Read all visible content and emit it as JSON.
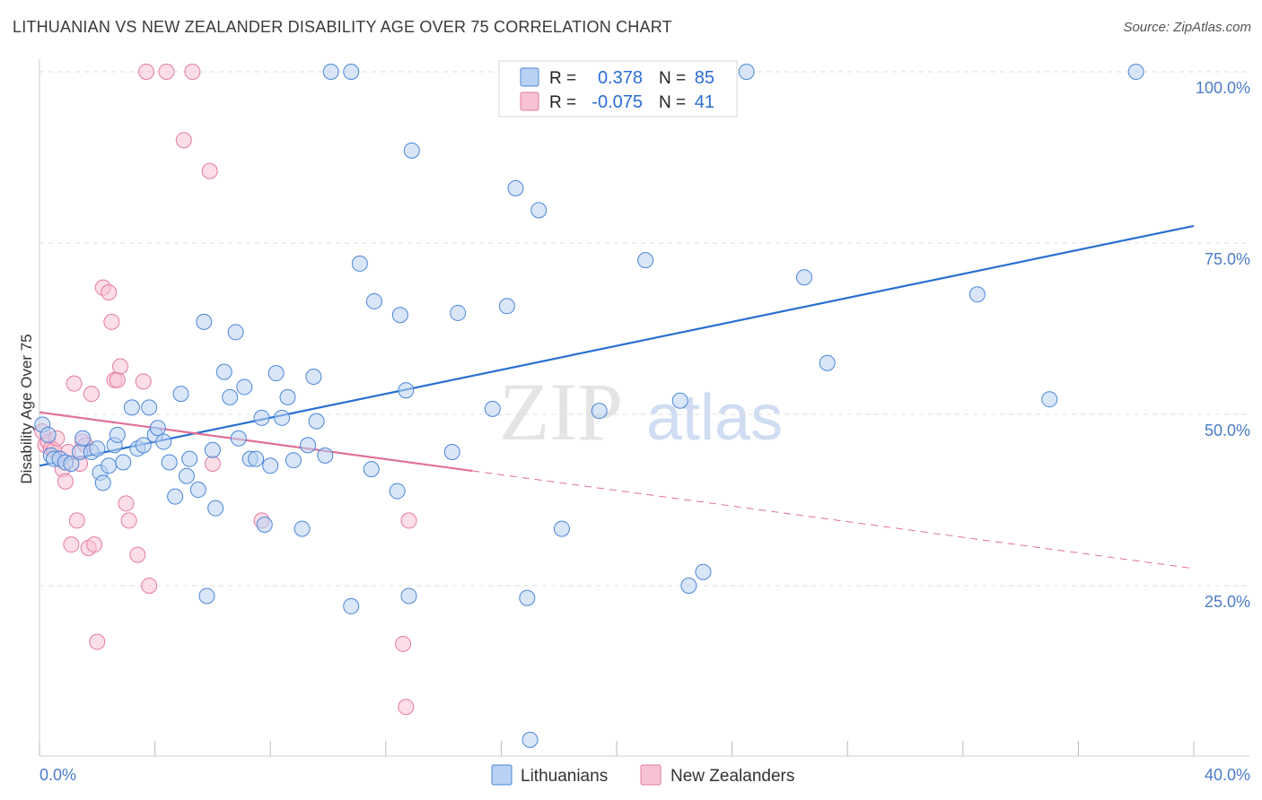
{
  "header": {
    "title": "LITHUANIAN VS NEW ZEALANDER DISABILITY AGE OVER 75 CORRELATION CHART",
    "source": "Source: ZipAtlas.com"
  },
  "watermark": {
    "zip": "ZIP",
    "atlas": "atlas"
  },
  "legend": {
    "row1": {
      "r_label": "R =",
      "r_value": "0.378",
      "n_label": "N =",
      "n_value": "85"
    },
    "row2": {
      "r_label": "R =",
      "r_value": "-0.075",
      "n_label": "N =",
      "n_value": "41"
    }
  },
  "bottom_legend": {
    "series1": "Lithuanians",
    "series2": "New Zealanders"
  },
  "colors": {
    "blue": "#4a86d8",
    "blue_fill": "#b9d1f3",
    "blue_line": "#2870d2",
    "pink": "#e47aa0",
    "pink_fill": "#f7c3d4",
    "pink_line": "#e0709a",
    "grid": "#dcdcdc",
    "axis_text": "#4a7cc7"
  },
  "chart_data": {
    "type": "scatter",
    "title": "LITHUANIAN VS NEW ZEALANDER DISABILITY AGE OVER 75 CORRELATION CHART",
    "xlabel": "",
    "ylabel": "Disability Age Over 75",
    "xlim": [
      0,
      40
    ],
    "ylim": [
      0,
      102
    ],
    "x_tick_labels": [
      "0.0%",
      "40.0%"
    ],
    "y_tick_labels": [
      "25.0%",
      "50.0%",
      "75.0%",
      "100.0%"
    ],
    "y_ticks": [
      25,
      50,
      75,
      100
    ],
    "grid": true,
    "legend_position": "top-center",
    "series": [
      {
        "name": "Lithuanians",
        "color": "#4a86d8",
        "R": 0.378,
        "N": 85,
        "trend": {
          "x": [
            0,
            40
          ],
          "y": [
            42.5,
            77.5
          ],
          "dashed_from": null
        },
        "points": [
          [
            0.1,
            48.5
          ],
          [
            0.3,
            47
          ],
          [
            0.4,
            44
          ],
          [
            0.5,
            43.5
          ],
          [
            0.7,
            43.5
          ],
          [
            0.9,
            43
          ],
          [
            1.1,
            42.8
          ],
          [
            1.4,
            44.5
          ],
          [
            1.5,
            46.5
          ],
          [
            1.8,
            44.5
          ],
          [
            2.0,
            45
          ],
          [
            2.1,
            41.5
          ],
          [
            2.2,
            40
          ],
          [
            2.4,
            42.5
          ],
          [
            2.6,
            45.5
          ],
          [
            2.7,
            47
          ],
          [
            2.9,
            43
          ],
          [
            3.2,
            51
          ],
          [
            3.4,
            45
          ],
          [
            3.6,
            45.5
          ],
          [
            3.8,
            51
          ],
          [
            4.0,
            47
          ],
          [
            4.1,
            48
          ],
          [
            4.3,
            46
          ],
          [
            4.5,
            43
          ],
          [
            4.7,
            38
          ],
          [
            4.9,
            53
          ],
          [
            5.1,
            41
          ],
          [
            5.2,
            43.5
          ],
          [
            5.5,
            39
          ],
          [
            5.7,
            63.5
          ],
          [
            5.8,
            23.5
          ],
          [
            6.0,
            44.8
          ],
          [
            6.1,
            36.3
          ],
          [
            6.4,
            56.2
          ],
          [
            6.6,
            52.5
          ],
          [
            6.8,
            62
          ],
          [
            6.9,
            46.5
          ],
          [
            7.1,
            54
          ],
          [
            7.3,
            43.5
          ],
          [
            7.5,
            43.5
          ],
          [
            7.7,
            49.5
          ],
          [
            7.8,
            33.9
          ],
          [
            8.0,
            42.5
          ],
          [
            8.2,
            56
          ],
          [
            8.4,
            49.5
          ],
          [
            8.6,
            52.5
          ],
          [
            8.8,
            43.3
          ],
          [
            9.1,
            33.3
          ],
          [
            9.3,
            45.5
          ],
          [
            9.5,
            55.5
          ],
          [
            9.6,
            49
          ],
          [
            9.9,
            44
          ],
          [
            10.1,
            100
          ],
          [
            10.8,
            100
          ],
          [
            10.8,
            22
          ],
          [
            11.1,
            72
          ],
          [
            11.5,
            42
          ],
          [
            11.6,
            66.5
          ],
          [
            12.4,
            38.8
          ],
          [
            12.5,
            64.5
          ],
          [
            12.7,
            53.5
          ],
          [
            12.8,
            23.5
          ],
          [
            12.9,
            88.5
          ],
          [
            14.3,
            44.5
          ],
          [
            14.5,
            64.8
          ],
          [
            15.7,
            50.8
          ],
          [
            16.2,
            65.8
          ],
          [
            16.5,
            83
          ],
          [
            16.9,
            23.2
          ],
          [
            17.0,
            2.5
          ],
          [
            17.3,
            79.8
          ],
          [
            18.1,
            33.3
          ],
          [
            19.4,
            50.5
          ],
          [
            21.0,
            72.5
          ],
          [
            21.7,
            100
          ],
          [
            22.2,
            52
          ],
          [
            22.5,
            25
          ],
          [
            23.0,
            27
          ],
          [
            24.5,
            100
          ],
          [
            26.5,
            70
          ],
          [
            27.3,
            57.5
          ],
          [
            32.5,
            67.5
          ],
          [
            35.0,
            52.2
          ],
          [
            38.0,
            100
          ]
        ]
      },
      {
        "name": "New Zealanders",
        "color": "#e47aa0",
        "R": -0.075,
        "N": 41,
        "trend": {
          "x": [
            0,
            40
          ],
          "y": [
            50.3,
            27.5
          ],
          "dashed_from": 15.0
        },
        "points": [
          [
            0.1,
            47.5
          ],
          [
            0.2,
            45.5
          ],
          [
            0.3,
            46
          ],
          [
            0.4,
            45
          ],
          [
            0.5,
            44.8
          ],
          [
            0.6,
            46.5
          ],
          [
            0.7,
            43.5
          ],
          [
            0.8,
            42
          ],
          [
            0.9,
            40.2
          ],
          [
            1.0,
            44.5
          ],
          [
            1.1,
            31
          ],
          [
            1.2,
            54.5
          ],
          [
            1.3,
            34.5
          ],
          [
            1.4,
            42.8
          ],
          [
            1.5,
            46
          ],
          [
            1.6,
            45.5
          ],
          [
            1.7,
            30.5
          ],
          [
            1.8,
            53
          ],
          [
            1.9,
            31
          ],
          [
            2.0,
            16.8
          ],
          [
            2.2,
            68.5
          ],
          [
            2.4,
            67.8
          ],
          [
            2.5,
            63.5
          ],
          [
            2.6,
            55
          ],
          [
            2.7,
            55
          ],
          [
            2.8,
            57
          ],
          [
            3.0,
            37
          ],
          [
            3.1,
            34.5
          ],
          [
            3.4,
            29.5
          ],
          [
            3.6,
            54.8
          ],
          [
            3.7,
            100
          ],
          [
            3.8,
            25
          ],
          [
            4.4,
            100
          ],
          [
            5.0,
            90
          ],
          [
            5.3,
            100
          ],
          [
            5.9,
            85.5
          ],
          [
            6.0,
            42.8
          ],
          [
            7.7,
            34.5
          ],
          [
            12.6,
            16.5
          ],
          [
            12.7,
            7.3
          ],
          [
            12.8,
            34.5
          ]
        ]
      }
    ]
  }
}
